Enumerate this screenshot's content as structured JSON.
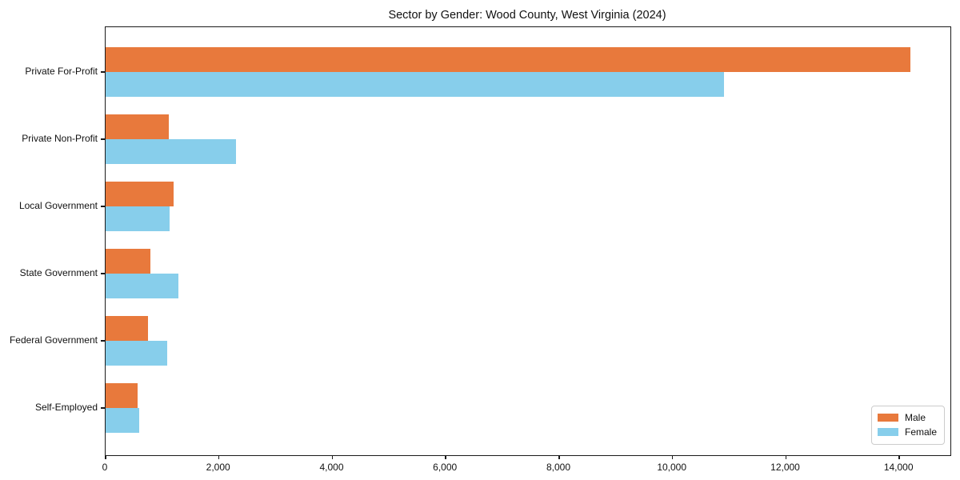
{
  "chart_data": {
    "type": "bar",
    "orientation": "horizontal",
    "title": "Sector by Gender: Wood County, West Virginia (2024)",
    "categories": [
      "Private For-Profit",
      "Private Non-Profit",
      "Local Government",
      "State Government",
      "Federal Government",
      "Self-Employed"
    ],
    "series": [
      {
        "name": "Male",
        "color": "#E8793C",
        "values": [
          14200,
          1120,
          1200,
          790,
          750,
          570
        ]
      },
      {
        "name": "Female",
        "color": "#87CEEB",
        "values": [
          10900,
          2300,
          1130,
          1290,
          1080,
          590
        ]
      }
    ],
    "xlabel": "",
    "ylabel": "",
    "xlim": [
      0,
      14900
    ],
    "xticks": [
      0,
      2000,
      4000,
      6000,
      8000,
      10000,
      12000,
      14000
    ],
    "xtick_labels": [
      "0",
      "2,000",
      "4,000",
      "6,000",
      "8,000",
      "10,000",
      "12,000",
      "14,000"
    ],
    "grid": "off",
    "legend_position": "lower right"
  }
}
